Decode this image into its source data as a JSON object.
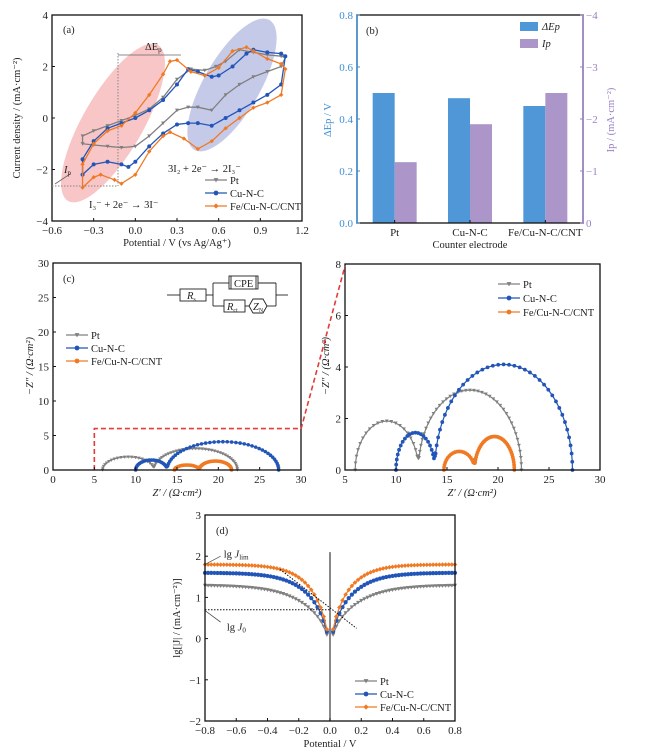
{
  "chart_data": [
    {
      "id": "a",
      "type": "line",
      "panel_label": "(a)",
      "xlabel": "Potential / V (vs Ag/Ag⁺)",
      "ylabel": "Current density / (mA·cm⁻²)",
      "xlim": [
        -0.6,
        1.2
      ],
      "ylim": [
        -4,
        4
      ],
      "xticks": [
        -0.6,
        -0.3,
        0.0,
        0.3,
        0.6,
        0.9,
        1.2
      ],
      "xtick_labels": [
        "−0.6",
        "−0.3",
        "0.0",
        "0.3",
        "0.6",
        "0.9",
        "1.2"
      ],
      "yticks": [
        -4,
        -2,
        0,
        2,
        4
      ],
      "ytick_labels": [
        "−4",
        "−2",
        "0",
        "2",
        "4"
      ],
      "annotations": {
        "delta_ep": "ΔE",
        "delta_ep_sub": "p",
        "ip": "I",
        "ip_sub": "p",
        "reaction_1": "3I₂ + 2e⁻ → 2I₃⁻",
        "reaction_2": "I₃⁻ + 2e⁻ → 3I⁻"
      },
      "series": [
        {
          "name": "Pt",
          "color": "#808080",
          "marker": "triangle",
          "x": [
            -0.38,
            -0.3,
            -0.2,
            -0.1,
            0.0,
            0.1,
            0.2,
            0.3,
            0.38,
            0.45,
            0.55,
            0.65,
            0.75,
            0.85,
            0.95,
            1.05,
            1.08,
            1.05,
            0.95,
            0.85,
            0.75,
            0.65,
            0.58,
            0.5,
            0.4,
            0.3,
            0.2,
            0.1,
            0.0,
            -0.1,
            -0.2,
            -0.3,
            -0.38
          ],
          "y": [
            -1.0,
            -1.05,
            -1.1,
            -1.15,
            -1.1,
            -0.7,
            -0.2,
            0.3,
            0.42,
            0.42,
            0.3,
            0.9,
            1.3,
            1.6,
            1.8,
            2.0,
            2.35,
            2.4,
            2.45,
            2.55,
            2.65,
            2.2,
            2.0,
            1.85,
            1.9,
            1.5,
            0.8,
            0.35,
            0.1,
            -0.1,
            -0.3,
            -0.5,
            -0.7
          ]
        },
        {
          "name": "Cu-N-C",
          "color": "#2255b8",
          "marker": "circle",
          "x": [
            -0.38,
            -0.3,
            -0.2,
            -0.1,
            -0.05,
            0.0,
            0.1,
            0.2,
            0.3,
            0.38,
            0.45,
            0.55,
            0.65,
            0.75,
            0.85,
            0.95,
            1.05,
            1.08,
            1.05,
            0.95,
            0.85,
            0.8,
            0.7,
            0.6,
            0.55,
            0.45,
            0.38,
            0.3,
            0.2,
            0.1,
            0.0,
            -0.1,
            -0.2,
            -0.3,
            -0.38
          ],
          "y": [
            -2.2,
            -1.8,
            -1.7,
            -1.8,
            -1.9,
            -1.7,
            -1.1,
            -0.6,
            -0.25,
            -0.2,
            -0.2,
            -0.3,
            0.0,
            0.3,
            0.6,
            0.9,
            1.3,
            2.4,
            2.5,
            2.55,
            2.65,
            2.5,
            2.0,
            1.65,
            1.6,
            1.8,
            1.9,
            1.3,
            0.7,
            0.3,
            0.0,
            -0.2,
            -0.4,
            -0.9,
            -1.6
          ]
        },
        {
          "name": "Fe/Cu-N-C/CNT",
          "color": "#f07a24",
          "marker": "diamond",
          "x": [
            -0.38,
            -0.3,
            -0.25,
            -0.15,
            -0.1,
            0.0,
            0.1,
            0.2,
            0.25,
            0.35,
            0.45,
            0.55,
            0.65,
            0.75,
            0.85,
            0.95,
            1.05,
            1.08,
            1.05,
            0.95,
            0.85,
            0.8,
            0.7,
            0.6,
            0.5,
            0.4,
            0.3,
            0.25,
            0.2,
            0.1,
            0.0,
            -0.1,
            -0.2,
            -0.3,
            -0.38
          ],
          "y": [
            -2.7,
            -2.3,
            -2.2,
            -2.4,
            -2.55,
            -2.2,
            -1.3,
            -0.7,
            -0.55,
            -0.8,
            -1.2,
            -0.9,
            -0.4,
            0.0,
            0.4,
            0.6,
            0.9,
            1.9,
            2.1,
            2.3,
            2.6,
            2.75,
            2.6,
            1.95,
            1.65,
            1.8,
            2.25,
            2.2,
            1.7,
            0.9,
            0.2,
            -0.3,
            -0.5,
            -1.0,
            -1.8
          ]
        }
      ]
    },
    {
      "id": "b",
      "type": "bar",
      "panel_label": "(b)",
      "categories": [
        "Pt",
        "Cu-N-C",
        "Fe/Cu-N-C/CNT"
      ],
      "xlabel": "Counter electrode",
      "ylabel_left": "ΔEp / V",
      "ylabel_right": "Ip / (mA·cm⁻²)",
      "ylim_left": [
        0,
        0.8
      ],
      "ylim_right": [
        0,
        -4
      ],
      "yticks_left": [
        "0.0",
        "0.2",
        "0.4",
        "0.6",
        "0.8"
      ],
      "yticks_right": [
        "0",
        "−1",
        "−2",
        "−3",
        "−4"
      ],
      "series": [
        {
          "name": "ΔEp",
          "axis": "left",
          "color": "#4f97d6",
          "values": [
            0.5,
            0.48,
            0.45
          ]
        },
        {
          "name": "Ip",
          "axis": "right",
          "color": "#ac96c9",
          "values": [
            -1.17,
            -1.9,
            -2.5
          ]
        }
      ],
      "left_axis_color": "#3f8fd6",
      "right_axis_color": "#9a80c6"
    },
    {
      "id": "c",
      "type": "scatter",
      "panel_label": "(c)",
      "xlabel": "Z′ / (Ω·cm²)",
      "ylabel": "−Z″ / (Ω·cm²)",
      "xlim": [
        0,
        30
      ],
      "ylim": [
        0,
        30
      ],
      "xticks": [
        0,
        5,
        10,
        15,
        20,
        25,
        30
      ],
      "yticks": [
        0,
        5,
        10,
        15,
        20,
        25,
        30
      ],
      "zoom_box": {
        "x": [
          5,
          30
        ],
        "y": [
          0,
          6
        ],
        "color": "#e23b3b"
      },
      "circuit": {
        "rs": "R",
        "rs_sub": "s",
        "cpe": "CPE",
        "rct": "R",
        "rct_sub": "ct",
        "zn": "Z",
        "zn_sub": "N"
      },
      "series": [
        {
          "name": "Pt",
          "color": "#808080",
          "marker": "triangle",
          "arcs": [
            {
              "x0": 6.0,
              "x1": 12.2,
              "h": 1.9
            },
            {
              "x0": 12.2,
              "x1": 22.3,
              "h": 3.1
            }
          ],
          "dip": 0.55
        },
        {
          "name": "Cu-N-C",
          "color": "#2255b8",
          "marker": "circle",
          "arcs": [
            {
              "x0": 10.0,
              "x1": 13.8,
              "h": 1.45
            },
            {
              "x0": 13.8,
              "x1": 27.3,
              "h": 4.1
            }
          ],
          "dip": 0.65
        },
        {
          "name": "Fe/Cu-N-C/CNT",
          "color": "#f07a24",
          "marker": "circle",
          "arcs": [
            {
              "x0": 14.7,
              "x1": 17.7,
              "h": 0.72
            },
            {
              "x0": 17.7,
              "x1": 21.6,
              "h": 1.3
            }
          ],
          "dip": 0.4
        }
      ]
    },
    {
      "id": "c_zoom",
      "type": "scatter",
      "panel_label": "",
      "xlabel": "Z′ / (Ω·cm²)",
      "ylabel": "−Z″ / (Ω·cm²)",
      "xlim": [
        5,
        30
      ],
      "ylim": [
        0,
        8
      ],
      "xticks": [
        5,
        10,
        15,
        20,
        25,
        30
      ],
      "yticks": [
        0,
        2,
        4,
        6,
        8
      ],
      "series_ref": "c"
    },
    {
      "id": "d",
      "type": "line",
      "panel_label": "(d)",
      "xlabel": "Potential / V",
      "ylabel": "lg[|J| / (mA·cm⁻²)]",
      "xlim": [
        -0.8,
        0.8
      ],
      "ylim": [
        -2,
        3
      ],
      "xticks": [
        -0.8,
        -0.6,
        -0.4,
        -0.2,
        0.0,
        0.2,
        0.4,
        0.6,
        0.8
      ],
      "xtick_labels": [
        "−0.8",
        "−0.6",
        "−0.4",
        "−0.2",
        "0.0",
        "0.2",
        "0.4",
        "0.6",
        "0.8"
      ],
      "yticks": [
        -2,
        -1,
        0,
        1,
        2,
        3
      ],
      "ytick_labels": [
        "−2",
        "−1",
        "0",
        "1",
        "2",
        "3"
      ],
      "annotations": {
        "jlim": "lg J",
        "jlim_sub": "lim",
        "j0": "lg J",
        "j0_sub": "0",
        "j0_level": 0.7
      },
      "series": [
        {
          "name": "Pt",
          "color": "#808080",
          "marker": "triangle",
          "jlim": 1.3,
          "k": 6.0
        },
        {
          "name": "Cu-N-C",
          "color": "#2255b8",
          "marker": "circle",
          "jlim": 1.6,
          "k": 7.5
        },
        {
          "name": "Fe/Cu-N-C/CNT",
          "color": "#f07a24",
          "marker": "diamond",
          "jlim": 1.8,
          "k": 8.5
        }
      ]
    }
  ]
}
